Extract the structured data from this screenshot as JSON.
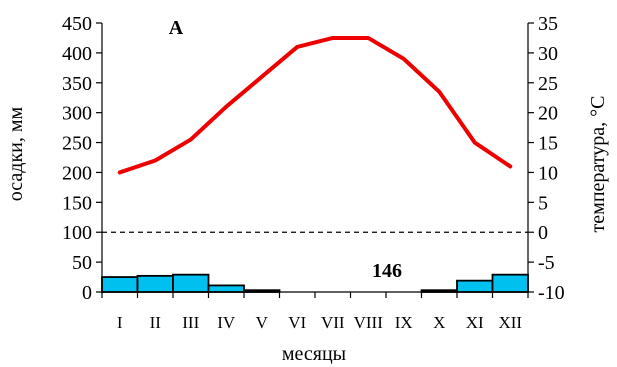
{
  "chart_data": {
    "type": "bar+line",
    "panel_label": "A",
    "annotation": "146",
    "categories": [
      "I",
      "II",
      "III",
      "IV",
      "V",
      "VI",
      "VII",
      "VIII",
      "IX",
      "X",
      "XI",
      "XII"
    ],
    "precipitation": {
      "values": [
        25,
        27,
        29,
        11,
        3,
        0,
        0,
        0,
        0,
        3,
        19,
        29
      ],
      "color": "#00c0f0"
    },
    "temperature": {
      "values": [
        10,
        12,
        15.5,
        21,
        26,
        31,
        32.5,
        32.5,
        29,
        23.5,
        15,
        11
      ],
      "color": "#ee0000"
    },
    "xlabel": "месяцы",
    "ylabel_left": "осадки, мм",
    "ylabel_right": "температура, °C",
    "ylim_left": [
      0,
      450
    ],
    "ylim_right": [
      -10,
      35
    ],
    "yticks_left": [
      0,
      50,
      100,
      150,
      200,
      250,
      300,
      350,
      400,
      450
    ],
    "yticks_right": [
      -10,
      -5,
      0,
      5,
      10,
      15,
      20,
      25,
      30,
      35
    ],
    "zero_temperature_line": "dashed",
    "grid": false
  }
}
